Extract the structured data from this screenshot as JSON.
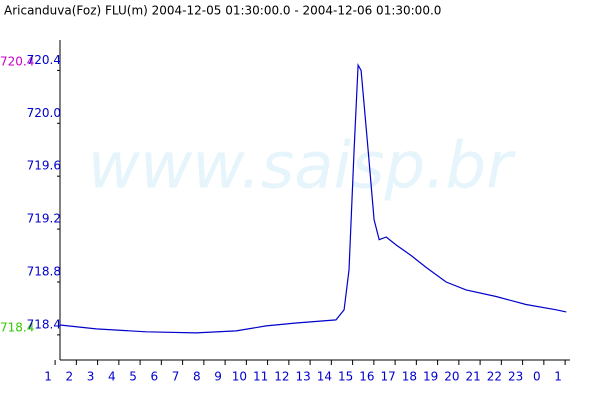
{
  "chart_data": {
    "type": "line",
    "title": "Aricanduva(Foz) FLU(m) 2004-12-05 01:30:00.0 - 2004-12-06 01:30:00.0",
    "watermark": "www.saisp.br",
    "max_label": "720.4",
    "min_label": "718.4",
    "x": [
      0.56,
      2.26,
      4.61,
      6.96,
      8.85,
      10.26,
      11.67,
      13.55,
      13.93,
      14.16,
      14.4,
      14.59,
      14.73,
      15.06,
      15.34,
      15.58,
      15.91,
      16.38,
      17.08,
      17.79,
      18.73,
      19.67,
      21.08,
      22.49,
      23.91,
      24.38
    ],
    "series": [
      {
        "color": "#0000cc",
        "values": [
          718.475,
          718.445,
          718.423,
          718.415,
          718.43,
          718.468,
          718.49,
          718.513,
          718.59,
          718.89,
          719.8,
          720.44,
          720.4,
          719.8,
          719.27,
          719.12,
          719.14,
          719.08,
          719.0,
          718.91,
          718.8,
          718.74,
          718.69,
          718.63,
          718.59,
          718.574
        ]
      }
    ],
    "xlim": [
      0.56,
      24.56
    ],
    "ylim": [
      718.21,
      720.63
    ],
    "yticks": [
      718.4,
      718.8,
      719.2,
      719.6,
      {
        "value": 720,
        "label": "720.0"
      },
      720.4
    ],
    "xticks": [
      {
        "value": 0,
        "label": "1"
      },
      {
        "value": 1,
        "label": "2"
      },
      {
        "value": 2,
        "label": "3"
      },
      {
        "value": 3,
        "label": "4"
      },
      {
        "value": 4,
        "label": "5"
      },
      {
        "value": 5,
        "label": "6"
      },
      {
        "value": 6,
        "label": "7"
      },
      {
        "value": 7,
        "label": "8"
      },
      {
        "value": 8,
        "label": "9"
      },
      {
        "value": 9,
        "label": "10"
      },
      {
        "value": 10,
        "label": "11"
      },
      {
        "value": 11,
        "label": "12"
      },
      {
        "value": 12,
        "label": "13"
      },
      {
        "value": 13,
        "label": "14"
      },
      {
        "value": 14,
        "label": "15"
      },
      {
        "value": 15,
        "label": "16"
      },
      {
        "value": 16,
        "label": "17"
      },
      {
        "value": 17,
        "label": "18"
      },
      {
        "value": 18,
        "label": "19"
      },
      {
        "value": 19,
        "label": "20"
      },
      {
        "value": 20,
        "label": "21"
      },
      {
        "value": 21,
        "label": "22"
      },
      {
        "value": 22,
        "label": "23"
      },
      {
        "value": 23,
        "label": "0"
      },
      {
        "value": 24,
        "label": "1"
      }
    ]
  }
}
